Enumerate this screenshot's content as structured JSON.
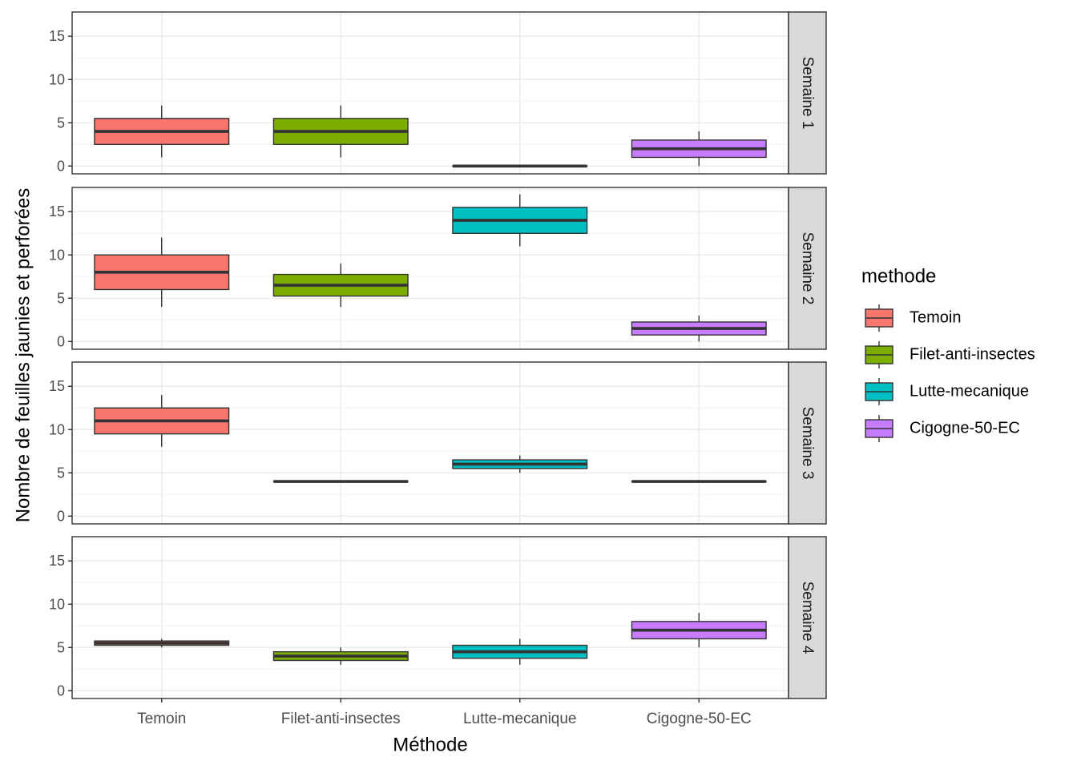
{
  "chart_data": {
    "type": "boxplot",
    "facet_variable": "semaine",
    "facets": [
      "Semaine 1",
      "Semaine 2",
      "Semaine 3",
      "Semaine 4"
    ],
    "categories": [
      "Temoin",
      "Filet-anti-insectes",
      "Lutte-mecanique",
      "Cigogne-50-EC"
    ],
    "xlabel": "Méthode",
    "ylabel": "Nombre de feuilles jaunies et perforées",
    "ylim": [
      -0.9,
      17.8
    ],
    "yticks": [
      0,
      5,
      10,
      15
    ],
    "legend": {
      "title": "methode",
      "placement": "right",
      "entries": [
        "Temoin",
        "Filet-anti-insectes",
        "Lutte-mecanique",
        "Cigogne-50-EC"
      ]
    },
    "colors": {
      "Temoin": "#F8766D",
      "Filet-anti-insectes": "#7CAE00",
      "Lutte-mecanique": "#00BFC4",
      "Cigogne-50-EC": "#C77CFF"
    },
    "grid": true,
    "boxes": [
      [
        {
          "min": 1,
          "q1": 2.5,
          "median": 4,
          "q3": 5.5,
          "max": 7
        },
        {
          "min": 1,
          "q1": 2.5,
          "median": 4,
          "q3": 5.5,
          "max": 7
        },
        {
          "min": 0,
          "q1": 0,
          "median": 0,
          "q3": 0,
          "max": 0
        },
        {
          "min": 0,
          "q1": 1,
          "median": 2,
          "q3": 3,
          "max": 4
        }
      ],
      [
        {
          "min": 4,
          "q1": 6,
          "median": 8,
          "q3": 10,
          "max": 12
        },
        {
          "min": 4,
          "q1": 5.25,
          "median": 6.5,
          "q3": 7.75,
          "max": 9
        },
        {
          "min": 11,
          "q1": 12.5,
          "median": 14,
          "q3": 15.5,
          "max": 17
        },
        {
          "min": 0,
          "q1": 0.75,
          "median": 1.5,
          "q3": 2.25,
          "max": 3
        }
      ],
      [
        {
          "min": 8,
          "q1": 9.5,
          "median": 11,
          "q3": 12.5,
          "max": 14
        },
        {
          "min": 4,
          "q1": 4,
          "median": 4,
          "q3": 4,
          "max": 4
        },
        {
          "min": 5,
          "q1": 5.5,
          "median": 6,
          "q3": 6.5,
          "max": 7
        },
        {
          "min": 4,
          "q1": 4,
          "median": 4,
          "q3": 4,
          "max": 4
        }
      ],
      [
        {
          "min": 5,
          "q1": 5.25,
          "median": 5.5,
          "q3": 5.75,
          "max": 6
        },
        {
          "min": 3,
          "q1": 3.5,
          "median": 4,
          "q3": 4.5,
          "max": 5
        },
        {
          "min": 3,
          "q1": 3.75,
          "median": 4.5,
          "q3": 5.25,
          "max": 6
        },
        {
          "min": 5,
          "q1": 6,
          "median": 7,
          "q3": 8,
          "max": 9
        }
      ]
    ]
  }
}
